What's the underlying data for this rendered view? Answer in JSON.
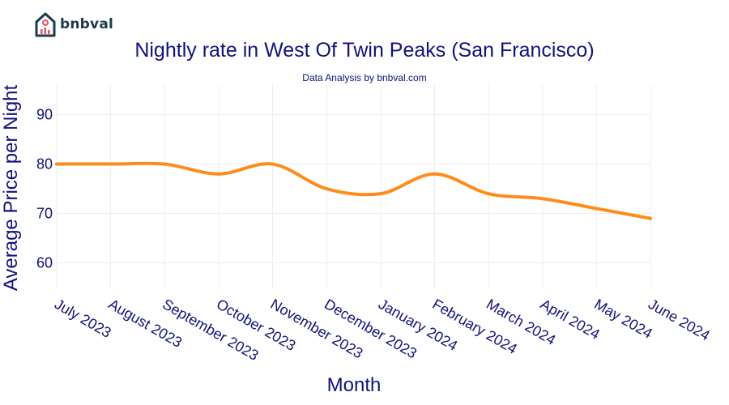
{
  "brand": {
    "logo_text": "bnbval",
    "logo_icon": "house-chart-icon"
  },
  "chart_data": {
    "type": "line",
    "title": "Nightly rate in West Of Twin Peaks (San Francisco)",
    "subtitle": "Data Analysis by bnbval.com",
    "xlabel": "Month",
    "ylabel": "Average Price per Night",
    "categories": [
      "July 2023",
      "August 2023",
      "September 2023",
      "October 2023",
      "November 2023",
      "December 2023",
      "January 2024",
      "February 2024",
      "March 2024",
      "April 2024",
      "May 2024",
      "June 2024"
    ],
    "series": [
      {
        "values": [
          80,
          80,
          80,
          78,
          80,
          75,
          74,
          78,
          74,
          73,
          71,
          69
        ],
        "color": "#ff8c1a"
      }
    ],
    "ylim": [
      55,
      96
    ],
    "yticks": [
      60,
      70,
      80,
      90
    ],
    "grid": true,
    "line_shape": "smooth"
  }
}
